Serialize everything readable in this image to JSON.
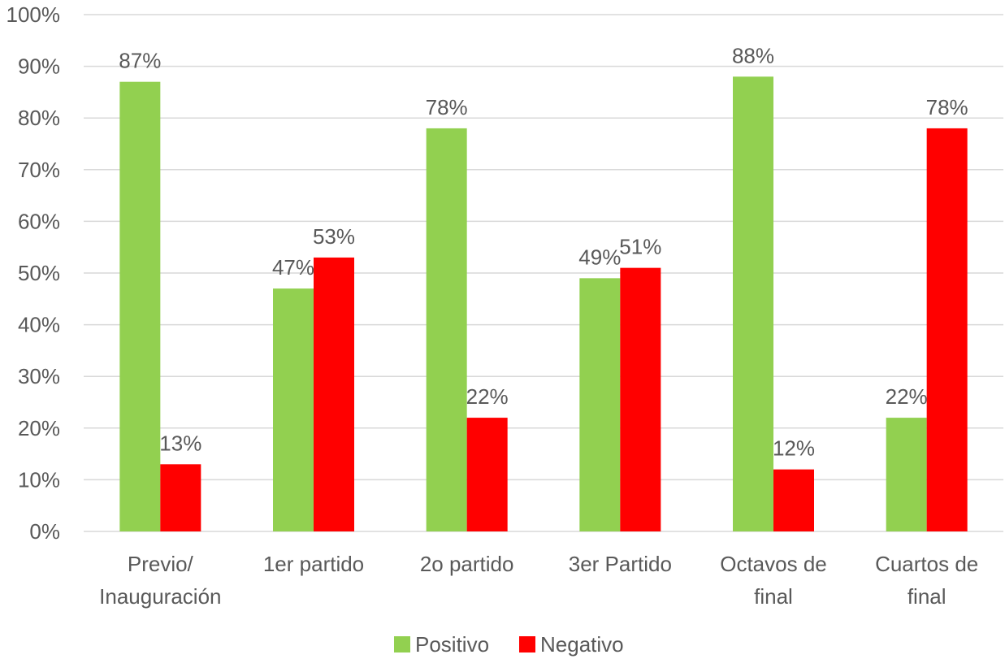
{
  "chart_data": {
    "type": "bar",
    "categories": [
      [
        "Previo/",
        "Inauguración"
      ],
      [
        "1er partido"
      ],
      [
        "2o partido"
      ],
      [
        "3er Partido"
      ],
      [
        "Octavos de",
        "final"
      ],
      [
        "Cuartos de",
        "final"
      ]
    ],
    "series": [
      {
        "name": "Positivo",
        "color": "#92d050",
        "values": [
          87,
          47,
          78,
          49,
          88,
          22
        ],
        "labels": [
          "87%",
          "47%",
          "78%",
          "49%",
          "88%",
          "22%"
        ]
      },
      {
        "name": "Negativo",
        "color": "#ff0000",
        "values": [
          13,
          53,
          22,
          51,
          12,
          78
        ],
        "labels": [
          "13%",
          "53%",
          "22%",
          "51%",
          "12%",
          "78%"
        ]
      }
    ],
    "ylim": [
      0,
      100
    ],
    "yticks": [
      "0%",
      "10%",
      "20%",
      "30%",
      "40%",
      "50%",
      "60%",
      "70%",
      "80%",
      "90%",
      "100%"
    ],
    "grid": true,
    "legend_position": "bottom"
  }
}
